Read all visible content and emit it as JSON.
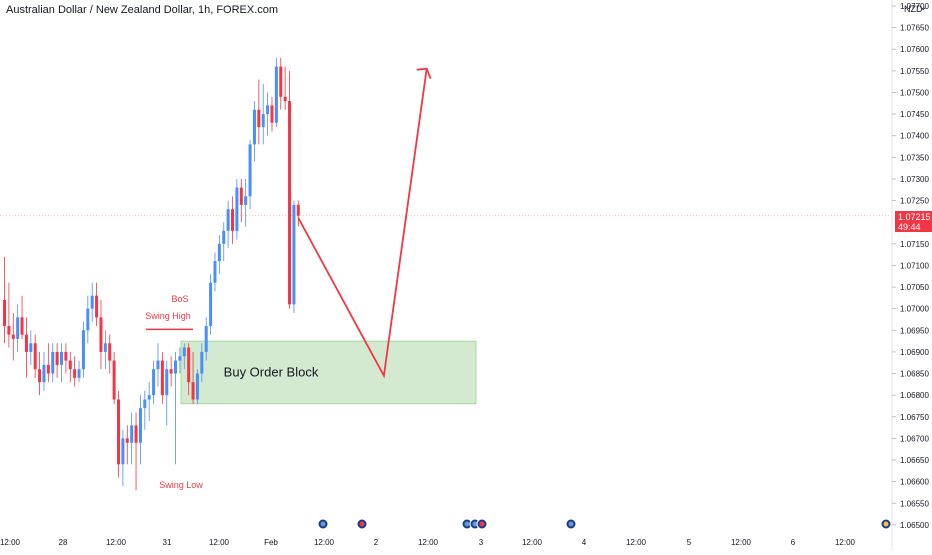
{
  "header": {
    "title": "Australian Dollar / New Zealand Dollar, 1h, FOREX.com",
    "currency": "NZD",
    "chevron_icon": "chevron-down-icon"
  },
  "last_price": {
    "value": "1.07215",
    "countdown": "49:44",
    "color": "#f23645"
  },
  "colors": {
    "up": "#4a8ff7",
    "down": "#f23645",
    "zone_fill": "#cfe8cc",
    "zone_border": "#8fcf8a",
    "annotation": "#f23645"
  },
  "chart_data": {
    "type": "candlestick",
    "symbol": "AUDNZD",
    "timeframe": "1h",
    "y_axis": {
      "ticks": [
        "1.07700",
        "1.07650",
        "1.07600",
        "1.07550",
        "1.07500",
        "1.07450",
        "1.07400",
        "1.07350",
        "1.07300",
        "1.07250",
        "1.07150",
        "1.07100",
        "1.07050",
        "1.07000",
        "1.06950",
        "1.06900",
        "1.06850",
        "1.06800",
        "1.06750",
        "1.06700",
        "1.06650",
        "1.06600",
        "1.06550",
        "1.06500"
      ],
      "range": [
        1.06495,
        1.0771
      ]
    },
    "x_axis": {
      "labels": [
        "12:00",
        "28",
        "12:00",
        "31",
        "12:00",
        "Feb",
        "12:00",
        "2",
        "12:00",
        "3",
        "12:00",
        "4",
        "12:00",
        "5",
        "12:00",
        "6",
        "12:00"
      ]
    },
    "candles": [
      [
        1.0702,
        1.0712,
        1.0692,
        1.0696
      ],
      [
        1.0696,
        1.0706,
        1.0691,
        1.0694
      ],
      [
        1.0694,
        1.0699,
        1.0688,
        1.0693
      ],
      [
        1.0693,
        1.0701,
        1.069,
        1.0698
      ],
      [
        1.0698,
        1.0703,
        1.0693,
        1.0694
      ],
      [
        1.0694,
        1.0698,
        1.0684,
        1.069
      ],
      [
        1.069,
        1.0695,
        1.0687,
        1.0692
      ],
      [
        1.0692,
        1.0694,
        1.0684,
        1.0686
      ],
      [
        1.0686,
        1.069,
        1.068,
        1.0683
      ],
      [
        1.0683,
        1.069,
        1.0681,
        1.0687
      ],
      [
        1.0687,
        1.0692,
        1.0683,
        1.0685
      ],
      [
        1.0685,
        1.0692,
        1.0683,
        1.069
      ],
      [
        1.069,
        1.0692,
        1.0684,
        1.0687
      ],
      [
        1.0687,
        1.0692,
        1.0683,
        1.069
      ],
      [
        1.069,
        1.0692,
        1.0685,
        1.0688
      ],
      [
        1.0688,
        1.069,
        1.0683,
        1.0686
      ],
      [
        1.0686,
        1.0689,
        1.0682,
        1.0684
      ],
      [
        1.0684,
        1.0688,
        1.0683,
        1.0686
      ],
      [
        1.0686,
        1.0697,
        1.0684,
        1.0695
      ],
      [
        1.0695,
        1.0703,
        1.0692,
        1.07
      ],
      [
        1.07,
        1.0706,
        1.0697,
        1.0703
      ],
      [
        1.0703,
        1.0706,
        1.0696,
        1.0698
      ],
      [
        1.0698,
        1.0702,
        1.0686,
        1.069
      ],
      [
        1.069,
        1.0695,
        1.0686,
        1.0692
      ],
      [
        1.0692,
        1.0694,
        1.0685,
        1.0688
      ],
      [
        1.0688,
        1.069,
        1.0678,
        1.0679
      ],
      [
        1.0679,
        1.0681,
        1.0661,
        1.0664
      ],
      [
        1.0664,
        1.0672,
        1.0659,
        1.067
      ],
      [
        1.067,
        1.0673,
        1.0664,
        1.0669
      ],
      [
        1.0669,
        1.0676,
        1.0664,
        1.0673
      ],
      [
        1.0673,
        1.0676,
        1.0658,
        1.0669
      ],
      [
        1.0669,
        1.068,
        1.0664,
        1.0677
      ],
      [
        1.0677,
        1.0681,
        1.0672,
        1.0679
      ],
      [
        1.0679,
        1.0683,
        1.0674,
        1.068
      ],
      [
        1.068,
        1.0688,
        1.0678,
        1.0686
      ],
      [
        1.0686,
        1.0692,
        1.0682,
        1.0688
      ],
      [
        1.0688,
        1.069,
        1.0678,
        1.068
      ],
      [
        1.068,
        1.0688,
        1.0673,
        1.0686
      ],
      [
        1.0686,
        1.0689,
        1.0682,
        1.0685
      ],
      [
        1.0685,
        1.069,
        1.0664,
        1.0688
      ],
      [
        1.0688,
        1.0691,
        1.0685,
        1.0689
      ],
      [
        1.0689,
        1.0692,
        1.0686,
        1.0691
      ],
      [
        1.0691,
        1.0692,
        1.068,
        1.0683
      ],
      [
        1.0683,
        1.069,
        1.0678,
        1.0679
      ],
      [
        1.0679,
        1.0686,
        1.0678,
        1.0685
      ],
      [
        1.0685,
        1.0692,
        1.0683,
        1.069
      ],
      [
        1.069,
        1.0698,
        1.0688,
        1.0696
      ],
      [
        1.0696,
        1.0708,
        1.0694,
        1.0706
      ],
      [
        1.0706,
        1.0713,
        1.0704,
        1.0711
      ],
      [
        1.0711,
        1.0717,
        1.0708,
        1.0715
      ],
      [
        1.0715,
        1.072,
        1.0711,
        1.0718
      ],
      [
        1.0718,
        1.0725,
        1.0714,
        1.0723
      ],
      [
        1.0723,
        1.0726,
        1.0715,
        1.0718
      ],
      [
        1.0718,
        1.073,
        1.0716,
        1.0728
      ],
      [
        1.0728,
        1.073,
        1.072,
        1.0724
      ],
      [
        1.0724,
        1.073,
        1.0719,
        1.0726
      ],
      [
        1.0726,
        1.0739,
        1.0723,
        1.0738
      ],
      [
        1.0738,
        1.0748,
        1.0734,
        1.0746
      ],
      [
        1.0746,
        1.0753,
        1.0738,
        1.0742
      ],
      [
        1.0742,
        1.0752,
        1.0738,
        1.0745
      ],
      [
        1.0745,
        1.075,
        1.074,
        1.0747
      ],
      [
        1.0747,
        1.0749,
        1.0741,
        1.0743
      ],
      [
        1.0743,
        1.0758,
        1.0742,
        1.0756
      ],
      [
        1.0756,
        1.0758,
        1.0746,
        1.0749
      ],
      [
        1.0749,
        1.0756,
        1.0746,
        1.0748
      ],
      [
        1.0748,
        1.0755,
        1.07,
        1.0701
      ],
      [
        1.0701,
        1.0725,
        1.0699,
        1.0724
      ],
      [
        1.0724,
        1.0725,
        1.0719,
        1.07215
      ]
    ],
    "annotations": [
      {
        "text": "BoS",
        "color": "#f23645"
      },
      {
        "text": "Swing High",
        "color": "#f23645"
      },
      {
        "text": "Swing Low",
        "color": "#f23645"
      },
      {
        "text": "Buy Order Block",
        "color": "#131722"
      }
    ],
    "zone": {
      "label": "Buy Order Block",
      "y_top": 1.06925,
      "y_bottom": 1.0678
    },
    "projection_path": [
      {
        "bar_offset": 0,
        "price": 1.0721
      },
      {
        "bar_offset": 16,
        "price": 1.06845
      },
      {
        "bar_offset": 24,
        "price": 1.07555
      }
    ],
    "event_markers": [
      "flag-icon",
      "flag-icon",
      "flag-icon",
      "flag-icon",
      "flag-icon",
      "flag-icon"
    ],
    "last_price_line": 1.07215,
    "grid": false
  }
}
